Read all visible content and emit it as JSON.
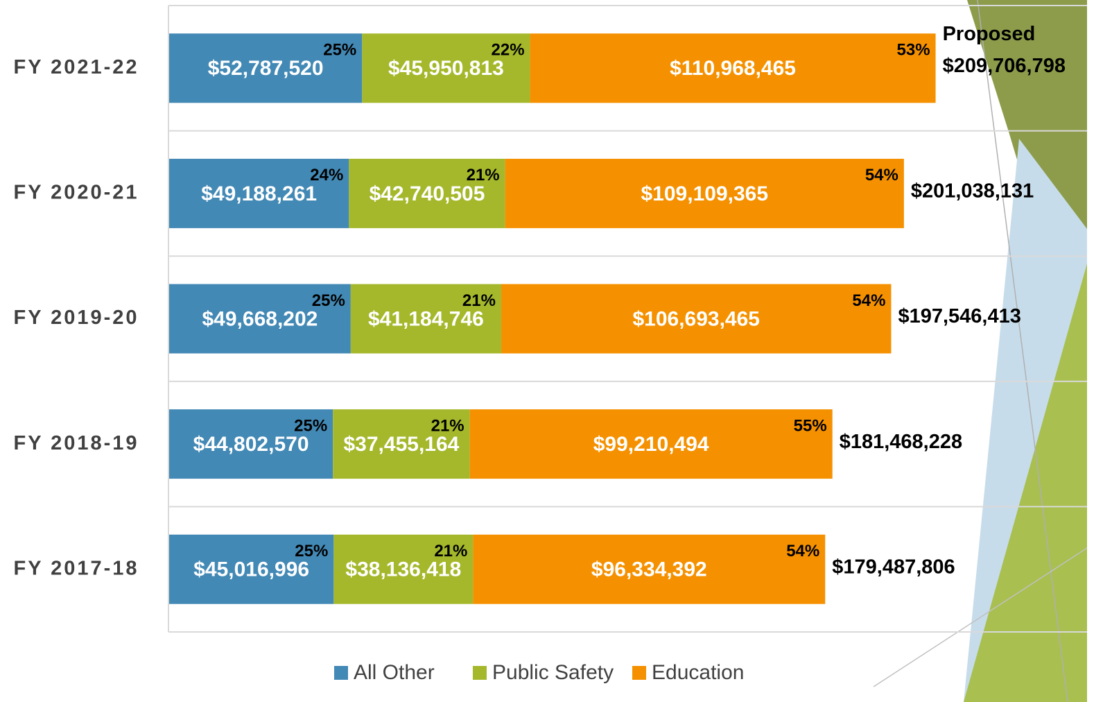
{
  "chart_data": {
    "type": "stacked-bar-horizontal",
    "categories": [
      "FY 2021-22",
      "FY 2020-21",
      "FY 2019-20",
      "FY 2018-19",
      "FY 2017-18"
    ],
    "series": [
      {
        "name": "All Other",
        "color": "#4389b5",
        "values": [
          52787520,
          49188261,
          49668202,
          44802570,
          45016996
        ],
        "value_labels": [
          "$52,787,520",
          "$49,188,261",
          "$49,668,202",
          "$44,802,570",
          "$45,016,996"
        ],
        "share_labels": [
          "25%",
          "24%",
          "25%",
          "25%",
          "25%"
        ]
      },
      {
        "name": "Public Safety",
        "color": "#a5b82b",
        "values": [
          45950813,
          42740505,
          41184746,
          37455164,
          38136418
        ],
        "value_labels": [
          "$45,950,813",
          "$42,740,505",
          "$41,184,746",
          "$37,455,164",
          "$38,136,418"
        ],
        "share_labels": [
          "22%",
          "21%",
          "21%",
          "21%",
          "21%"
        ]
      },
      {
        "name": "Education",
        "color": "#f59100",
        "values": [
          110968465,
          109109365,
          106693465,
          99210494,
          96334392
        ],
        "value_labels": [
          "$110,968,465",
          "$109,109,365",
          "$106,693,465",
          "$99,210,494",
          "$96,334,392"
        ],
        "share_labels": [
          "53%",
          "54%",
          "54%",
          "55%",
          "54%"
        ]
      }
    ],
    "totals": [
      209706798,
      201038131,
      197546413,
      181468228,
      179487806
    ],
    "total_labels": [
      "$209,706,798",
      "$201,038,131",
      "$197,546,413",
      "$181,468,228",
      "$179,487,806"
    ],
    "annotation": "Proposed",
    "xlim": [
      0,
      250000000
    ],
    "legend": "bottom"
  }
}
